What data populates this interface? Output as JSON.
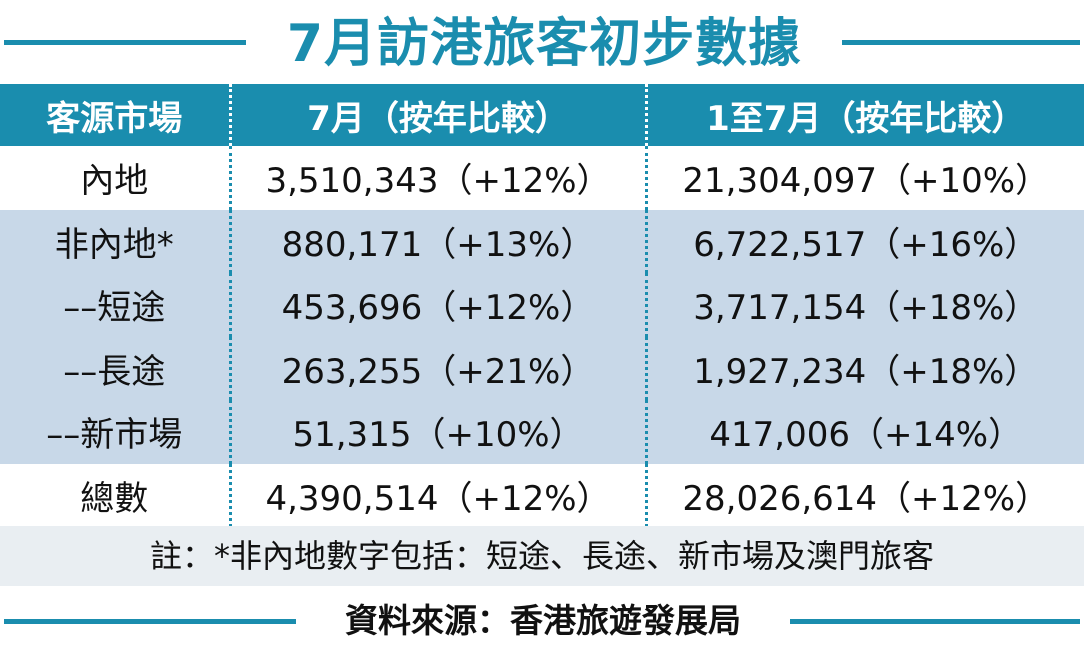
{
  "chart_data": {
    "type": "table",
    "title": "7月訪港旅客初步數據",
    "columns": [
      "客源市場",
      "7月（按年比較）",
      "1至7月（按年比較）"
    ],
    "rows": [
      {
        "market": "內地",
        "july": "3,510,343（+12%）",
        "jan_jul": "21,304,097（+10%）",
        "shade": false
      },
      {
        "market": "非內地*",
        "july": "880,171（+13%）",
        "jan_jul": "6,722,517（+16%）",
        "shade": true
      },
      {
        "market": "––短途",
        "july": "453,696（+12%）",
        "jan_jul": "3,717,154（+18%）",
        "shade": true
      },
      {
        "market": "––長途",
        "july": "263,255（+21%）",
        "jan_jul": "1,927,234（+18%）",
        "shade": true
      },
      {
        "market": "––新市場",
        "july": "51,315（+10%）",
        "jan_jul": "417,006（+14%）",
        "shade": true
      },
      {
        "market": "總數",
        "july": "4,390,514（+12%）",
        "jan_jul": "28,026,614（+12%）",
        "shade": false
      }
    ],
    "note": "註：*非內地數字包括：短途、長途、新市場及澳門旅客",
    "source": "資料來源：香港旅遊發展局"
  },
  "colors": {
    "accent": "#1a8dae",
    "shade": "#c8d8e8",
    "note_bg": "#e9eef2"
  }
}
